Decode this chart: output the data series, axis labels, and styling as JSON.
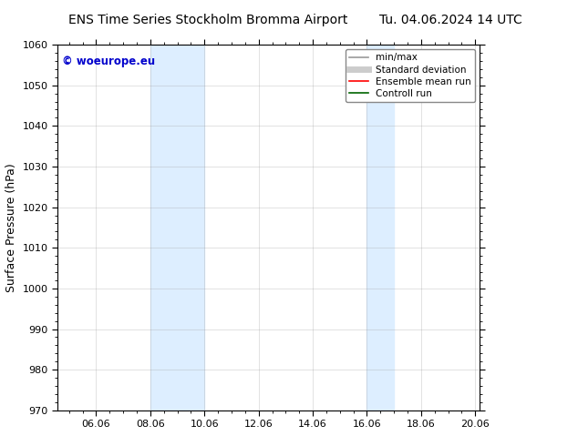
{
  "title_left": "ENS Time Series Stockholm Bromma Airport",
  "title_right": "Tu. 04.06.2024 14 UTC",
  "ylabel": "Surface Pressure (hPa)",
  "ylim": [
    970,
    1060
  ],
  "yticks": [
    970,
    980,
    990,
    1000,
    1010,
    1020,
    1030,
    1040,
    1050,
    1060
  ],
  "xtick_labels": [
    "06.06",
    "08.06",
    "10.06",
    "12.06",
    "14.06",
    "16.06",
    "18.06",
    "20.06"
  ],
  "shaded_color": "#ddeeff",
  "watermark_text": "© woeurope.eu",
  "watermark_color": "#0000cc",
  "legend_items": [
    {
      "label": "min/max",
      "color": "#999999",
      "lw": 1.2
    },
    {
      "label": "Standard deviation",
      "color": "#cccccc",
      "lw": 5
    },
    {
      "label": "Ensemble mean run",
      "color": "#ff0000",
      "lw": 1.2
    },
    {
      "label": "Controll run",
      "color": "#006400",
      "lw": 1.2
    }
  ],
  "bg_color": "#ffffff",
  "grid_color": "#999999"
}
